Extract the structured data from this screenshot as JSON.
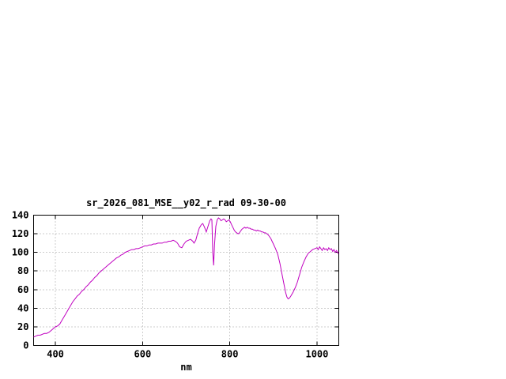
{
  "page": {
    "background": "#ffffff"
  },
  "chart_data": {
    "type": "line",
    "title": "sr_2026_081_MSE__y02_r_rad 09-30-00",
    "xlabel": "nm",
    "ylabel": "",
    "xlim": [
      350,
      1050
    ],
    "ylim": [
      0,
      140
    ],
    "xticks": [
      400,
      600,
      800,
      1000
    ],
    "yticks": [
      0,
      20,
      40,
      60,
      80,
      100,
      120,
      140
    ],
    "grid": true,
    "legend": "none",
    "series": [
      {
        "name": "sr_2026_081_MSE__y02_r_rad",
        "color": "#c000c0",
        "points": [
          [
            350,
            9
          ],
          [
            355,
            10
          ],
          [
            360,
            11
          ],
          [
            365,
            11
          ],
          [
            370,
            12
          ],
          [
            375,
            13
          ],
          [
            380,
            13
          ],
          [
            385,
            14
          ],
          [
            390,
            16
          ],
          [
            395,
            18
          ],
          [
            400,
            20
          ],
          [
            405,
            21
          ],
          [
            410,
            23
          ],
          [
            415,
            27
          ],
          [
            420,
            31
          ],
          [
            425,
            35
          ],
          [
            430,
            39
          ],
          [
            435,
            43
          ],
          [
            440,
            47
          ],
          [
            445,
            50
          ],
          [
            450,
            53
          ],
          [
            455,
            55
          ],
          [
            460,
            58
          ],
          [
            465,
            60
          ],
          [
            470,
            63
          ],
          [
            475,
            65
          ],
          [
            480,
            68
          ],
          [
            485,
            70
          ],
          [
            490,
            73
          ],
          [
            495,
            75
          ],
          [
            500,
            78
          ],
          [
            505,
            80
          ],
          [
            510,
            82
          ],
          [
            515,
            84
          ],
          [
            520,
            86
          ],
          [
            525,
            88
          ],
          [
            530,
            90
          ],
          [
            535,
            92
          ],
          [
            540,
            94
          ],
          [
            545,
            95
          ],
          [
            550,
            97
          ],
          [
            555,
            98
          ],
          [
            560,
            100
          ],
          [
            565,
            101
          ],
          [
            570,
            102
          ],
          [
            575,
            103
          ],
          [
            580,
            103
          ],
          [
            585,
            104
          ],
          [
            590,
            104
          ],
          [
            595,
            105
          ],
          [
            600,
            106
          ],
          [
            605,
            107
          ],
          [
            610,
            107
          ],
          [
            615,
            108
          ],
          [
            620,
            108
          ],
          [
            625,
            109
          ],
          [
            630,
            109
          ],
          [
            635,
            110
          ],
          [
            640,
            110
          ],
          [
            645,
            110
          ],
          [
            650,
            111
          ],
          [
            655,
            111
          ],
          [
            660,
            112
          ],
          [
            665,
            112
          ],
          [
            670,
            113
          ],
          [
            675,
            112
          ],
          [
            680,
            110
          ],
          [
            685,
            106
          ],
          [
            690,
            105
          ],
          [
            695,
            109
          ],
          [
            700,
            112
          ],
          [
            705,
            113
          ],
          [
            710,
            114
          ],
          [
            715,
            112
          ],
          [
            718,
            110
          ],
          [
            722,
            113
          ],
          [
            726,
            120
          ],
          [
            730,
            126
          ],
          [
            735,
            130
          ],
          [
            738,
            131
          ],
          [
            742,
            127
          ],
          [
            746,
            122
          ],
          [
            750,
            128
          ],
          [
            754,
            134
          ],
          [
            757,
            136
          ],
          [
            759,
            135
          ],
          [
            761,
            100
          ],
          [
            763,
            86
          ],
          [
            765,
            108
          ],
          [
            768,
            128
          ],
          [
            771,
            135
          ],
          [
            774,
            137
          ],
          [
            777,
            136
          ],
          [
            780,
            134
          ],
          [
            783,
            135
          ],
          [
            786,
            136
          ],
          [
            789,
            135
          ],
          [
            792,
            133
          ],
          [
            795,
            134
          ],
          [
            798,
            135
          ],
          [
            801,
            133
          ],
          [
            804,
            130
          ],
          [
            807,
            127
          ],
          [
            810,
            124
          ],
          [
            813,
            122
          ],
          [
            816,
            121
          ],
          [
            819,
            120
          ],
          [
            822,
            121
          ],
          [
            825,
            123
          ],
          [
            828,
            125
          ],
          [
            831,
            126
          ],
          [
            834,
            127
          ],
          [
            837,
            126
          ],
          [
            840,
            127
          ],
          [
            843,
            126
          ],
          [
            846,
            126
          ],
          [
            849,
            125
          ],
          [
            852,
            125
          ],
          [
            855,
            124
          ],
          [
            858,
            124
          ],
          [
            861,
            123
          ],
          [
            864,
            124
          ],
          [
            867,
            123
          ],
          [
            870,
            123
          ],
          [
            873,
            122
          ],
          [
            876,
            122
          ],
          [
            879,
            121
          ],
          [
            882,
            121
          ],
          [
            885,
            120
          ],
          [
            888,
            119
          ],
          [
            891,
            117
          ],
          [
            894,
            115
          ],
          [
            897,
            112
          ],
          [
            900,
            109
          ],
          [
            905,
            104
          ],
          [
            910,
            98
          ],
          [
            915,
            88
          ],
          [
            920,
            76
          ],
          [
            925,
            64
          ],
          [
            928,
            57
          ],
          [
            931,
            52
          ],
          [
            934,
            50
          ],
          [
            937,
            51
          ],
          [
            940,
            53
          ],
          [
            945,
            57
          ],
          [
            950,
            62
          ],
          [
            955,
            68
          ],
          [
            960,
            76
          ],
          [
            965,
            84
          ],
          [
            970,
            90
          ],
          [
            975,
            95
          ],
          [
            980,
            99
          ],
          [
            985,
            101
          ],
          [
            990,
            103
          ],
          [
            995,
            104
          ],
          [
            1000,
            105
          ],
          [
            1003,
            103
          ],
          [
            1006,
            106
          ],
          [
            1009,
            104
          ],
          [
            1012,
            102
          ],
          [
            1015,
            105
          ],
          [
            1018,
            103
          ],
          [
            1021,
            104
          ],
          [
            1024,
            102
          ],
          [
            1027,
            105
          ],
          [
            1030,
            103
          ],
          [
            1033,
            104
          ],
          [
            1036,
            101
          ],
          [
            1039,
            103
          ],
          [
            1042,
            100
          ],
          [
            1045,
            102
          ],
          [
            1048,
            99
          ],
          [
            1050,
            100
          ]
        ]
      }
    ]
  }
}
